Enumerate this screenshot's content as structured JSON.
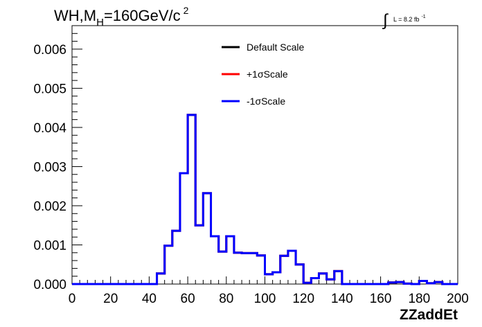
{
  "chart_data": {
    "type": "line",
    "title_parts": {
      "main": "WH,M",
      "sub": "H",
      "rest": "=160GeV/c",
      "sup": "2"
    },
    "lumi": {
      "integral": "∫",
      "text": "L = 8.2 fb",
      "sup": "-1"
    },
    "xlabel": "ZZaddEt",
    "ylabel": "",
    "xlim": [
      0,
      200
    ],
    "ylim": [
      0,
      0.0066
    ],
    "x_ticks": [
      "0",
      "20",
      "40",
      "60",
      "80",
      "100",
      "120",
      "140",
      "160",
      "180",
      "200"
    ],
    "y_ticks": [
      "0.000",
      "0.001",
      "0.002",
      "0.003",
      "0.004",
      "0.005",
      "0.006"
    ],
    "bin_edges": [
      0,
      4,
      8,
      12,
      16,
      20,
      24,
      28,
      32,
      36,
      40,
      44,
      48,
      52,
      56,
      60,
      64,
      68,
      72,
      76,
      80,
      84,
      88,
      92,
      96,
      100,
      104,
      108,
      112,
      116,
      120,
      124,
      128,
      132,
      136,
      140,
      144,
      148,
      152,
      156,
      160,
      164,
      168,
      172,
      176,
      180,
      184,
      188,
      192,
      196,
      200
    ],
    "series": [
      {
        "name": "Default Scale",
        "color": "#000000",
        "values": [
          0,
          0,
          0,
          0,
          0,
          0,
          0,
          0,
          0,
          0,
          0,
          0.00027,
          0.00098,
          0.00136,
          0.00283,
          0.00432,
          0.0015,
          0.00232,
          0.00122,
          0.00083,
          0.00122,
          0.0008,
          0.00079,
          0.00079,
          0.00073,
          0.00025,
          0.0003,
          0.00072,
          0.00085,
          0.0005,
          3e-05,
          0.00015,
          0.00027,
          0.00012,
          0.00033,
          0,
          0,
          0,
          0,
          0,
          0,
          4e-05,
          5e-05,
          1e-05,
          0,
          8e-05,
          2e-05,
          5e-05,
          0,
          0
        ]
      },
      {
        "name": "+1σScale",
        "color": "#ff0000",
        "values": [
          0,
          0,
          0,
          0,
          0,
          0,
          0,
          0,
          0,
          0,
          0,
          0.00027,
          0.00098,
          0.00136,
          0.00283,
          0.00432,
          0.0015,
          0.00232,
          0.00122,
          0.00083,
          0.00122,
          0.0008,
          0.00079,
          0.00079,
          0.00073,
          0.00025,
          0.0003,
          0.00072,
          0.00085,
          0.0005,
          3e-05,
          0.00015,
          0.00027,
          0.00012,
          0.00033,
          0,
          0,
          0,
          0,
          0,
          0,
          4e-05,
          5e-05,
          1e-05,
          0,
          8e-05,
          2e-05,
          5e-05,
          0,
          0
        ]
      },
      {
        "name": "-1σScale",
        "color": "#0000ff",
        "values": [
          0,
          0,
          0,
          0,
          0,
          0,
          0,
          0,
          0,
          0,
          0,
          0.00027,
          0.00098,
          0.00136,
          0.00283,
          0.00432,
          0.0015,
          0.00232,
          0.00122,
          0.00083,
          0.00122,
          0.0008,
          0.00079,
          0.00079,
          0.00073,
          0.00025,
          0.0003,
          0.00072,
          0.00085,
          0.0005,
          3e-05,
          0.00015,
          0.00027,
          0.00012,
          0.00033,
          0,
          0,
          0,
          0,
          0,
          0,
          4e-05,
          5e-05,
          1e-05,
          0,
          8e-05,
          2e-05,
          5e-05,
          0,
          0
        ]
      }
    ],
    "legend_position": "top-center",
    "grid": false
  }
}
